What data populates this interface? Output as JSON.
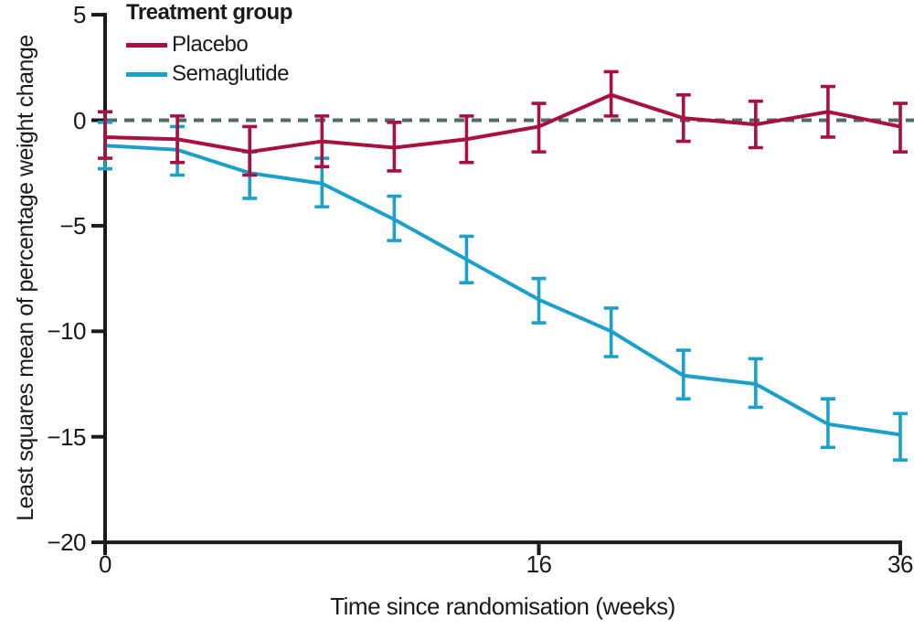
{
  "figure": {
    "legend": {
      "title": "Treatment group",
      "items": [
        {
          "label": "Placebo"
        },
        {
          "label": "Semaglutide"
        }
      ]
    }
  },
  "chart_data": {
    "type": "line",
    "title": "",
    "xlabel": "Time since randomisation (weeks)",
    "ylabel": "Least squares mean of percentage weight change",
    "ylim": [
      -20,
      5
    ],
    "grid": "off",
    "legend_position": "top-left-inside",
    "n_points": 12,
    "x_ticks": [
      {
        "label": "0",
        "index": 0
      },
      {
        "label": "16",
        "index": 6
      },
      {
        "label": "36",
        "index": 11
      }
    ],
    "y_ticks": [
      {
        "label": "5",
        "value": 5
      },
      {
        "label": "0",
        "value": 0
      },
      {
        "label": "−5",
        "value": -5
      },
      {
        "label": "−10",
        "value": -10
      },
      {
        "label": "−15",
        "value": -15
      },
      {
        "label": "−20",
        "value": -20
      }
    ],
    "zero_line": {
      "value": 0,
      "style": "dashed",
      "color": "#4f6a68"
    },
    "axis_color": "#1a1a1a",
    "error_bars": "95% CI",
    "series": [
      {
        "name": "Semaglutide",
        "color": "#1ba1c9",
        "values": [
          -1.2,
          -1.4,
          -2.5,
          -3.0,
          -4.7,
          -6.6,
          -8.5,
          -10.0,
          -12.1,
          -12.5,
          -14.4,
          -14.9
        ],
        "ci_upper": [
          -0.1,
          -0.3,
          -1.5,
          -1.8,
          -3.6,
          -5.5,
          -7.5,
          -8.9,
          -10.9,
          -11.3,
          -13.2,
          -13.9
        ],
        "ci_lower": [
          -2.3,
          -2.6,
          -3.7,
          -4.1,
          -5.7,
          -7.7,
          -9.6,
          -11.2,
          -13.2,
          -13.6,
          -15.5,
          -16.1
        ]
      },
      {
        "name": "Placebo",
        "color": "#a8113d",
        "values": [
          -0.8,
          -0.9,
          -1.5,
          -1.0,
          -1.3,
          -0.9,
          -0.3,
          1.2,
          0.1,
          -0.2,
          0.4,
          -0.3
        ],
        "ci_upper": [
          0.4,
          0.2,
          -0.3,
          0.2,
          -0.1,
          0.2,
          0.8,
          2.3,
          1.2,
          0.9,
          1.6,
          0.8
        ],
        "ci_lower": [
          -1.8,
          -2.0,
          -2.6,
          -2.2,
          -2.4,
          -2.0,
          -1.5,
          0.2,
          -1.0,
          -1.3,
          -0.8,
          -1.5
        ]
      }
    ]
  }
}
